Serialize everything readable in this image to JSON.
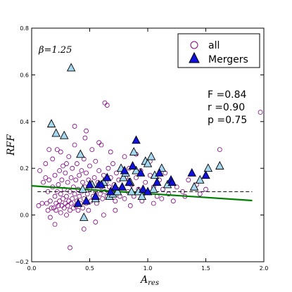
{
  "chart_data": {
    "type": "scatter",
    "xlabel": "A",
    "xlabel_sub": "res",
    "ylabel": "RFF",
    "xlim": [
      0.0,
      2.0
    ],
    "ylim": [
      -0.2,
      0.8
    ],
    "xticks": [
      "0.0",
      "0.5",
      "1.0",
      "1.5",
      "2.0"
    ],
    "yticks": [
      "−0.2",
      "0.0",
      "0.2",
      "0.4",
      "0.6",
      "0.8"
    ],
    "xtick_values": [
      0.0,
      0.5,
      1.0,
      1.5,
      2.0
    ],
    "ytick_values": [
      -0.2,
      0.0,
      0.2,
      0.4,
      0.6,
      0.8
    ],
    "beta_label": "β=1.25",
    "stats": [
      "F =0.84",
      "r =0.90",
      "p =0.75"
    ],
    "legend": {
      "placement": "top-right",
      "entries": [
        {
          "label": "all",
          "marker": "open-circle"
        },
        {
          "label": "Mergers",
          "marker": "filled-triangle"
        }
      ]
    },
    "colors": {
      "all": "#800080",
      "merger_dark": "#1111dd",
      "merger_light": "#a6d8f0",
      "fit": "#008000",
      "reference": "#000000"
    },
    "reference_line": {
      "y": 0.1,
      "x_range": [
        0.05,
        1.9
      ],
      "style": "dashed"
    },
    "fit_line": {
      "x": [
        0.0,
        1.9
      ],
      "y": [
        0.125,
        0.062
      ]
    },
    "series": [
      {
        "name": "all",
        "points": [
          [
            0.06,
            0.04
          ],
          [
            0.07,
            0.19
          ],
          [
            0.09,
            0.05
          ],
          [
            0.1,
            0.14
          ],
          [
            0.12,
            0.22
          ],
          [
            0.13,
            0.05
          ],
          [
            0.14,
            0.02
          ],
          [
            0.14,
            0.1
          ],
          [
            0.15,
            0.15
          ],
          [
            0.16,
            0.06
          ],
          [
            0.16,
            -0.01
          ],
          [
            0.17,
            0.03
          ],
          [
            0.18,
            0.12
          ],
          [
            0.18,
            0.24
          ],
          [
            0.19,
            0.03
          ],
          [
            0.2,
            0.08
          ],
          [
            0.2,
            0.17
          ],
          [
            0.21,
            0.02
          ],
          [
            0.21,
            0.05
          ],
          [
            0.22,
            0.1
          ],
          [
            0.22,
            0.28
          ],
          [
            0.23,
            0.04
          ],
          [
            0.23,
            0.13
          ],
          [
            0.24,
            0.06
          ],
          [
            0.24,
            0.19
          ],
          [
            0.25,
            0.01
          ],
          [
            0.25,
            0.09
          ],
          [
            0.26,
            0.04
          ],
          [
            0.26,
            0.15
          ],
          [
            0.27,
            0.07
          ],
          [
            0.27,
            0.21
          ],
          [
            0.28,
            0.03
          ],
          [
            0.28,
            0.11
          ],
          [
            0.29,
            0.05
          ],
          [
            0.29,
            0.18
          ],
          [
            0.3,
            0.0
          ],
          [
            0.3,
            0.08
          ],
          [
            0.31,
            0.04
          ],
          [
            0.31,
            0.14
          ],
          [
            0.32,
            0.06
          ],
          [
            0.32,
            0.25
          ],
          [
            0.33,
            0.02
          ],
          [
            0.33,
            0.1
          ],
          [
            0.34,
            0.05
          ],
          [
            0.34,
            0.16
          ],
          [
            0.35,
            0.07
          ],
          [
            0.35,
            0.2
          ],
          [
            0.36,
            0.03
          ],
          [
            0.36,
            0.12
          ],
          [
            0.37,
            0.09
          ],
          [
            0.37,
            0.3
          ],
          [
            0.38,
            0.04
          ],
          [
            0.38,
            0.15
          ],
          [
            0.39,
            0.06
          ],
          [
            0.39,
            0.22
          ],
          [
            0.4,
            0.02
          ],
          [
            0.4,
            0.11
          ],
          [
            0.41,
            0.08
          ],
          [
            0.41,
            0.17
          ],
          [
            0.42,
            0.05
          ],
          [
            0.42,
            0.26
          ],
          [
            0.43,
            0.1
          ],
          [
            0.43,
            0.19
          ],
          [
            0.44,
            0.03
          ],
          [
            0.44,
            0.14
          ],
          [
            0.45,
            0.07
          ],
          [
            0.45,
            0.24
          ],
          [
            0.46,
            0.12
          ],
          [
            0.46,
            0.33
          ],
          [
            0.47,
            0.05
          ],
          [
            0.47,
            0.18
          ],
          [
            0.48,
            0.09
          ],
          [
            0.49,
            0.02
          ],
          [
            0.49,
            0.15
          ],
          [
            0.5,
            0.11
          ],
          [
            0.5,
            0.21
          ],
          [
            0.51,
            0.06
          ],
          [
            0.52,
            0.13
          ],
          [
            0.52,
            0.28
          ],
          [
            0.53,
            0.08
          ],
          [
            0.54,
            0.16
          ],
          [
            0.55,
            0.1
          ],
          [
            0.55,
            0.23
          ],
          [
            0.56,
            0.05
          ],
          [
            0.57,
            0.14
          ],
          [
            0.58,
            0.19
          ],
          [
            0.59,
            0.09
          ],
          [
            0.6,
            0.12
          ],
          [
            0.6,
            0.3
          ],
          [
            0.61,
            0.07
          ],
          [
            0.62,
            0.17
          ],
          [
            0.63,
            0.1
          ],
          [
            0.63,
            0.48
          ],
          [
            0.64,
            0.14
          ],
          [
            0.65,
            0.08
          ],
          [
            0.65,
            0.47
          ],
          [
            0.66,
            0.2
          ],
          [
            0.67,
            0.12
          ],
          [
            0.68,
            0.16
          ],
          [
            0.69,
            0.09
          ],
          [
            0.7,
            0.22
          ],
          [
            0.71,
            0.13
          ],
          [
            0.72,
            0.06
          ],
          [
            0.73,
            0.18
          ],
          [
            0.74,
            0.11
          ],
          [
            0.75,
            0.15
          ],
          [
            0.76,
            0.08
          ],
          [
            0.77,
            0.2
          ],
          [
            0.78,
            0.12
          ],
          [
            0.8,
            0.07
          ],
          [
            0.81,
            0.16
          ],
          [
            0.83,
            0.1
          ],
          [
            0.84,
            0.2
          ],
          [
            0.86,
            0.13
          ],
          [
            0.88,
            0.08
          ],
          [
            0.9,
            0.16
          ],
          [
            0.92,
            0.11
          ],
          [
            0.94,
            0.19
          ],
          [
            0.96,
            0.09
          ],
          [
            0.98,
            0.14
          ],
          [
            1.0,
            0.1
          ],
          [
            1.02,
            0.17
          ],
          [
            1.05,
            0.12
          ],
          [
            1.08,
            0.08
          ],
          [
            1.1,
            0.15
          ],
          [
            1.13,
            0.11
          ],
          [
            1.15,
            0.18
          ],
          [
            1.18,
            0.09
          ],
          [
            1.2,
            0.14
          ],
          [
            1.25,
            0.12
          ],
          [
            1.3,
            0.1
          ],
          [
            1.35,
            0.15
          ],
          [
            1.42,
            0.13
          ],
          [
            1.5,
            0.11
          ],
          [
            1.62,
            0.28
          ],
          [
            1.97,
            0.44
          ],
          [
            0.2,
            -0.04
          ],
          [
            0.33,
            -0.14
          ],
          [
            0.45,
            -0.06
          ],
          [
            0.55,
            -0.03
          ],
          [
            0.62,
            0.0
          ],
          [
            0.72,
            0.02
          ],
          [
            0.85,
            0.04
          ],
          [
            0.95,
            0.06
          ],
          [
            1.05,
            0.05
          ],
          [
            1.12,
            0.07
          ],
          [
            1.22,
            0.06
          ],
          [
            1.32,
            0.08
          ],
          [
            1.45,
            0.09
          ],
          [
            0.15,
            0.28
          ],
          [
            0.25,
            0.27
          ],
          [
            0.37,
            0.38
          ],
          [
            0.47,
            0.36
          ],
          [
            0.58,
            0.31
          ],
          [
            0.68,
            0.27
          ],
          [
            0.8,
            0.25
          ],
          [
            0.9,
            0.26
          ],
          [
            1.02,
            0.23
          ],
          [
            0.12,
            0.16
          ],
          [
            0.3,
            0.22
          ]
        ]
      },
      {
        "name": "Mergers",
        "points": [
          [
            0.17,
            0.39,
            "l"
          ],
          [
            0.21,
            0.35,
            "l"
          ],
          [
            0.28,
            0.34,
            "l"
          ],
          [
            0.34,
            0.63,
            "l"
          ],
          [
            0.42,
            0.26,
            "l"
          ],
          [
            0.45,
            -0.01,
            "l"
          ],
          [
            0.44,
            0.11,
            "l"
          ],
          [
            0.52,
            0.13,
            "l"
          ],
          [
            0.55,
            0.07,
            "l"
          ],
          [
            0.62,
            0.14,
            "l"
          ],
          [
            0.67,
            0.08,
            "l"
          ],
          [
            0.7,
            0.09,
            "l"
          ],
          [
            0.74,
            0.1,
            "l"
          ],
          [
            0.77,
            0.2,
            "l"
          ],
          [
            0.79,
            0.16,
            "l"
          ],
          [
            0.81,
            0.18,
            "l"
          ],
          [
            0.85,
            0.14,
            "l"
          ],
          [
            0.86,
            0.1,
            "l"
          ],
          [
            0.88,
            0.27,
            "l"
          ],
          [
            0.9,
            0.19,
            "l"
          ],
          [
            0.92,
            0.1,
            "l"
          ],
          [
            0.95,
            0.08,
            "l"
          ],
          [
            0.98,
            0.23,
            "l"
          ],
          [
            1.0,
            0.22,
            "l"
          ],
          [
            1.03,
            0.25,
            "l"
          ],
          [
            1.05,
            0.11,
            "l"
          ],
          [
            1.06,
            0.17,
            "l"
          ],
          [
            1.12,
            0.2,
            "l"
          ],
          [
            1.17,
            0.13,
            "l"
          ],
          [
            1.4,
            0.12,
            "l"
          ],
          [
            1.45,
            0.15,
            "l"
          ],
          [
            1.52,
            0.2,
            "l"
          ],
          [
            1.62,
            0.21,
            "l"
          ],
          [
            0.4,
            0.05,
            "d"
          ],
          [
            0.47,
            0.06,
            "d"
          ],
          [
            0.5,
            0.13,
            "d"
          ],
          [
            0.55,
            0.08,
            "d"
          ],
          [
            0.58,
            0.13,
            "d"
          ],
          [
            0.6,
            0.13,
            "d"
          ],
          [
            0.65,
            0.16,
            "d"
          ],
          [
            0.68,
            0.1,
            "d"
          ],
          [
            0.72,
            0.12,
            "d"
          ],
          [
            0.78,
            0.12,
            "d"
          ],
          [
            0.8,
            0.19,
            "d"
          ],
          [
            0.84,
            0.14,
            "d"
          ],
          [
            0.87,
            0.21,
            "d"
          ],
          [
            0.9,
            0.32,
            "d"
          ],
          [
            0.94,
            0.18,
            "d"
          ],
          [
            0.96,
            0.11,
            "d"
          ],
          [
            1.0,
            0.1,
            "d"
          ],
          [
            1.08,
            0.14,
            "d"
          ],
          [
            1.1,
            0.18,
            "d"
          ],
          [
            1.2,
            0.15,
            "d"
          ],
          [
            1.21,
            0.14,
            "d"
          ],
          [
            1.38,
            0.18,
            "d"
          ],
          [
            1.5,
            0.17,
            "d"
          ]
        ]
      }
    ]
  }
}
